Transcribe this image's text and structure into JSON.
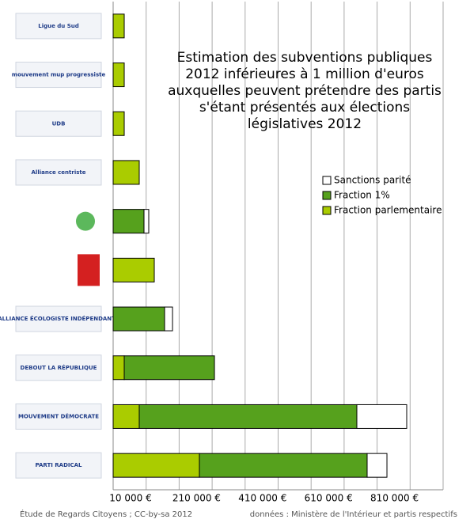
{
  "chart_data": {
    "type": "stacked-barh",
    "title": "Estimation des subventions publiques 2012 inférieures à 1 million d'euros auxquelles peuvent prétendre des partis s'étant présentés aux élections législatives 2012",
    "categories": [
      "Ligue du Sud",
      "mouvement mup progressiste",
      "UDB",
      "Alliance centriste",
      null,
      null,
      "ALLIANCE ÉCOLOGISTE INDÉPENDANTE",
      "DEBOUT LA RÉPUBLIQUE",
      "MOUVEMENT DÉMOCRATE",
      "PARTI RADICAL"
    ],
    "series": [
      {
        "name": "Fraction parlementaire",
        "color": "#aacc00",
        "values": [
          33600,
          33600,
          33600,
          79100,
          0,
          124700,
          0,
          33600,
          79100,
          261400
        ]
      },
      {
        "name": "Fraction 1%",
        "color": "#56a11d",
        "values": [
          0,
          0,
          0,
          0,
          93500,
          0,
          155900,
          273400,
          659500,
          508400
        ]
      },
      {
        "name": "Sanctions parité",
        "color": "#ffffff",
        "values": [
          0,
          0,
          0,
          0,
          14400,
          0,
          24000,
          0,
          151100,
          60000
        ]
      }
    ],
    "xlim": [
      10000,
      1010000
    ],
    "xticks": [
      {
        "value": 10000,
        "label": "10 000 €"
      },
      {
        "value": 210000,
        "label": "210 000 €"
      },
      {
        "value": 410000,
        "label": "410 000 €"
      },
      {
        "value": 610000,
        "label": "610 000 €"
      },
      {
        "value": 810000,
        "label": "810 000 €"
      }
    ],
    "minor_gridlines": [
      110000,
      310000,
      510000,
      710000,
      910000,
      1010000
    ],
    "grid": true,
    "legend": "upper right",
    "source_left": "Étude de Regards Citoyens ; CC-by-sa 2012",
    "source_right": "données : Ministère de l'Intérieur et partis respectifs"
  }
}
